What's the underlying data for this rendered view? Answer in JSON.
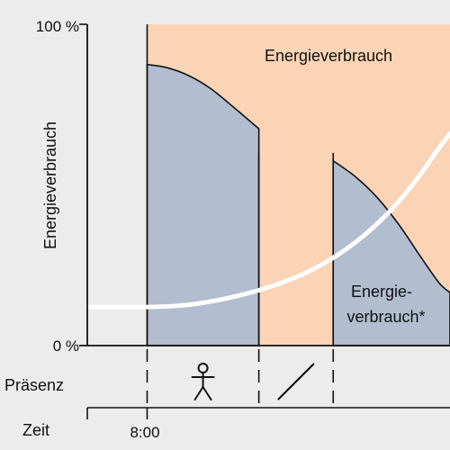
{
  "chart_data": {
    "type": "area",
    "y_axis": {
      "label": "Energieverbrauch",
      "max_label": "100 %",
      "min_label": "0 %",
      "range": [
        0,
        100
      ]
    },
    "x_axis": {
      "label": "Zeit",
      "range": [
        0,
        100
      ]
    },
    "regions": {
      "total_area_label": "Energieverbrauch",
      "reduced_area_label_line1": "Energie-",
      "reduced_area_label_line2": "verbrauch*"
    },
    "time_marks": [
      {
        "x": 16.5,
        "label": "8:00"
      }
    ],
    "phase_boundaries": [
      16.5,
      47.3,
      67.8
    ],
    "presence_row": {
      "label": "Präsenz",
      "phases": [
        {
          "from": 16.5,
          "to": 47.3,
          "icon": "person-icon"
        },
        {
          "from": 47.3,
          "to": 67.8,
          "icon": "slash-icon"
        }
      ]
    },
    "series": [
      {
        "kind": "total",
        "color": "#fbd3b5",
        "segments": [
          {
            "points": [
              [
                16.5,
                100
              ],
              [
                100,
                100
              ]
            ]
          }
        ]
      },
      {
        "kind": "reduced",
        "color": "#b2bdcf",
        "segments": [
          {
            "points": [
              [
                16.5,
                87.5
              ],
              [
                22,
                86.5
              ],
              [
                28,
                84
              ],
              [
                34,
                80
              ],
              [
                40,
                74.5
              ],
              [
                47.3,
                67.5
              ]
            ]
          },
          {
            "points": [
              [
                67.8,
                57.5
              ],
              [
                74,
                52.5
              ],
              [
                80,
                46
              ],
              [
                86,
                37.5
              ],
              [
                92,
                27.5
              ],
              [
                97,
                19.5
              ],
              [
                100,
                16.5
              ]
            ]
          }
        ]
      },
      {
        "kind": "curve",
        "color": "#ffffff",
        "points": [
          [
            0,
            12
          ],
          [
            16.5,
            12
          ],
          [
            30,
            13
          ],
          [
            45,
            16.5
          ],
          [
            58,
            21.5
          ],
          [
            68,
            27.5
          ],
          [
            76,
            34
          ],
          [
            84,
            42.5
          ],
          [
            91,
            52
          ],
          [
            96,
            60
          ],
          [
            100,
            66
          ]
        ]
      }
    ]
  }
}
